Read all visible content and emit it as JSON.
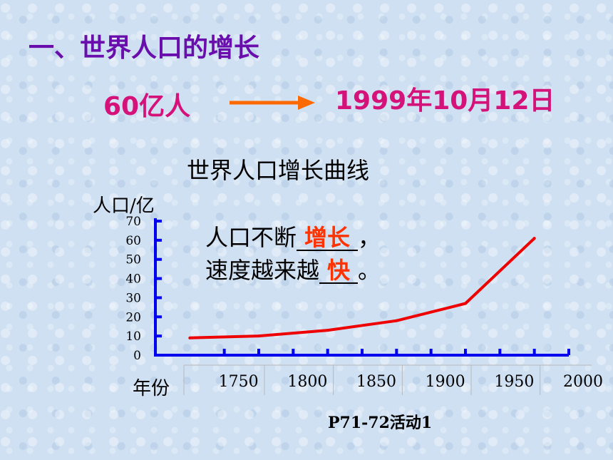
{
  "slide": {
    "heading": "一、世界人口的增长",
    "population_text": "60亿人",
    "date_text": "1999年10月12日",
    "source": "P71-72活动1",
    "note": {
      "line1_prefix": "人口不断",
      "line1_answer": "增长",
      "line1_suffix": "，",
      "line2_prefix": "速度越来越",
      "line2_answer": "快",
      "line2_suffix": "。"
    },
    "colors": {
      "heading": "#6a0dad",
      "highlight": "#d4127a",
      "arrow": "#ff6a00",
      "axis": "#0000ee",
      "line": "#ee0000",
      "answer": "#ff3300"
    }
  },
  "chart_data": {
    "type": "line",
    "title": "世界人口增长曲线",
    "ylabel": "人口/亿",
    "xlabel": "年份",
    "ylim": [
      0,
      70
    ],
    "yticks": [
      0,
      10,
      20,
      30,
      40,
      50,
      60,
      70
    ],
    "xlim": [
      1700,
      2000
    ],
    "xticks": [
      1750,
      1800,
      1850,
      1900,
      1950,
      2000
    ],
    "x": [
      1725,
      1775,
      1825,
      1875,
      1925,
      1975
    ],
    "y": [
      9,
      10,
      13,
      18,
      27,
      61
    ],
    "grid": false
  }
}
